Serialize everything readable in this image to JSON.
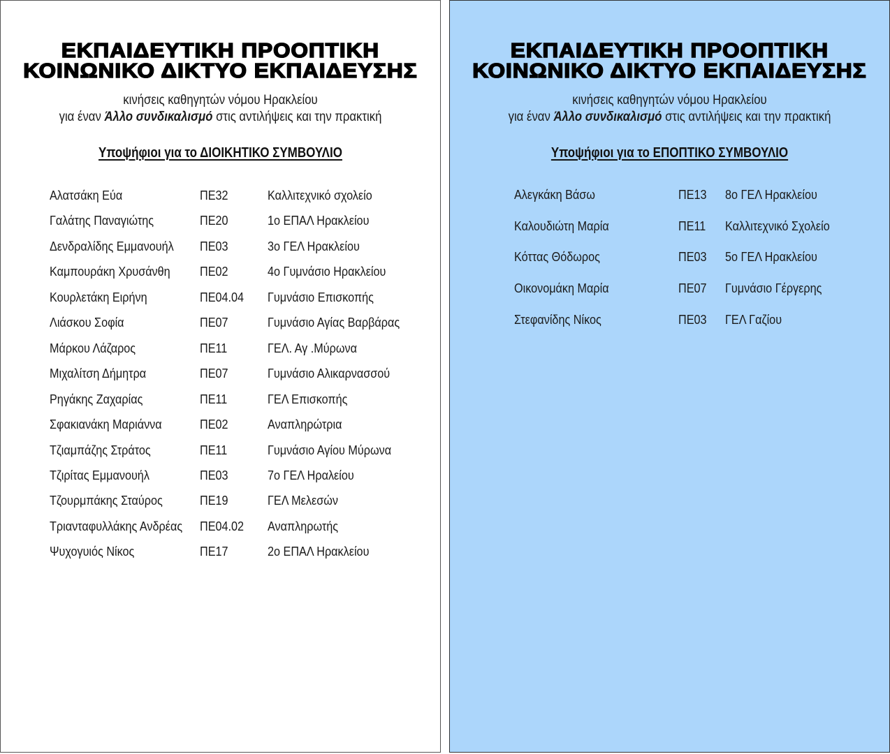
{
  "header": {
    "title_line1": "ΕΚΠΑΙΔΕΥΤΙΚΗ ΠΡΟΟΠΤΙΚΗ",
    "title_line2": "ΚΟΙΝΩΝΙΚΟ ΔΙΚΤΥΟ ΕΚΠΑΙΔΕΥΣΗΣ",
    "subtitle_line1": "κινήσεις καθηγητών νόμου Ηρακλείου",
    "subtitle_line2_pre": "για έναν ",
    "subtitle_line2_emph": "Άλλο συνδικαλισμό",
    "subtitle_line2_post": " στις αντιλήψεις και την πρακτική"
  },
  "left": {
    "heading": "Υποψήφιοι για το ΔΙΟΙΚΗΤΙΚΟ ΣΥΜΒΟΥΛΙΟ",
    "background": "#ffffff",
    "candidates": [
      {
        "name": "Αλατσάκη Εύα",
        "code": "ΠΕ32",
        "school": "Καλλιτεχνικό σχολείο"
      },
      {
        "name": "Γαλάτης Παναγιώτης",
        "code": "ΠΕ20",
        "school": "1ο ΕΠΑΛ Ηρακλείου"
      },
      {
        "name": "Δενδραλίδης Εμμανουήλ",
        "code": "ΠΕ03",
        "school": "3ο ΓΕΛ Ηρακλείου"
      },
      {
        "name": "Καμπουράκη Χρυσάνθη",
        "code": "ΠΕ02",
        "school": "4ο Γυμνάσιο Ηρακλείου"
      },
      {
        "name": "Κουρλετάκη Ειρήνη",
        "code": "ΠΕ04.04",
        "school": "Γυμνάσιο Επισκοπής"
      },
      {
        "name": "Λιάσκου Σοφία",
        "code": "ΠΕ07",
        "school": "Γυμνάσιο Αγίας Βαρβάρας"
      },
      {
        "name": "Μάρκου Λάζαρος",
        "code": "ΠΕ11",
        "school": "ΓΕΛ. Αγ .Μύρωνα"
      },
      {
        "name": "Μιχαλίτση Δήμητρα",
        "code": "ΠΕ07",
        "school": "Γυμνάσιο Αλικαρνασσού"
      },
      {
        "name": "Ρηγάκης Ζαχαρίας",
        "code": "ΠΕ11",
        "school": "ΓΕΛ Επισκοπής"
      },
      {
        "name": "Σφακιανάκη Μαριάννα",
        "code": "ΠΕ02",
        "school": "Αναπληρώτρια"
      },
      {
        "name": "Τζιαμπάζης Στράτος",
        "code": "ΠΕ11",
        "school": "Γυμνάσιο Αγίου Μύρωνα"
      },
      {
        "name": "Τζιρίτας Εμμανουήλ",
        "code": "ΠΕ03",
        "school": "7ο ΓΕΛ Ηραλείου"
      },
      {
        "name": "Τζουρμπάκης Σταύρος",
        "code": "ΠΕ19",
        "school": "ΓΕΛ Μελεσών"
      },
      {
        "name": "Τριανταφυλλάκης Ανδρέας",
        "code": "ΠΕ04.02",
        "school": "Αναπληρωτής"
      },
      {
        "name": "Ψυχογυιός Νίκος",
        "code": "ΠΕ17",
        "school": "2ο ΕΠΑΛ Ηρακλείου"
      }
    ]
  },
  "right": {
    "heading": "Υποψήφιοι για το ΕΠΟΠΤΙΚΟ ΣΥΜΒΟΥΛΙΟ",
    "background": "#acd6fb",
    "candidates": [
      {
        "name": "Αλεγκάκη Βάσω",
        "code": "ΠΕ13",
        "school": "8ο ΓΕΛ Ηρακλείου"
      },
      {
        "name": "Καλουδιώτη Μαρία",
        "code": "ΠΕ11",
        "school": "Καλλιτεχνικό Σχολείο"
      },
      {
        "name": "Κόττας Θόδωρος",
        "code": "ΠΕ03",
        "school": "5ο ΓΕΛ  Ηρακλείου"
      },
      {
        "name": "Οικονομάκη Μαρία",
        "code": "ΠΕ07",
        "school": "Γυμνάσιο Γέργερης"
      },
      {
        "name": "Στεφανίδης Νίκος",
        "code": "ΠΕ03",
        "school": "ΓΕΛ Γαζίου"
      }
    ]
  }
}
